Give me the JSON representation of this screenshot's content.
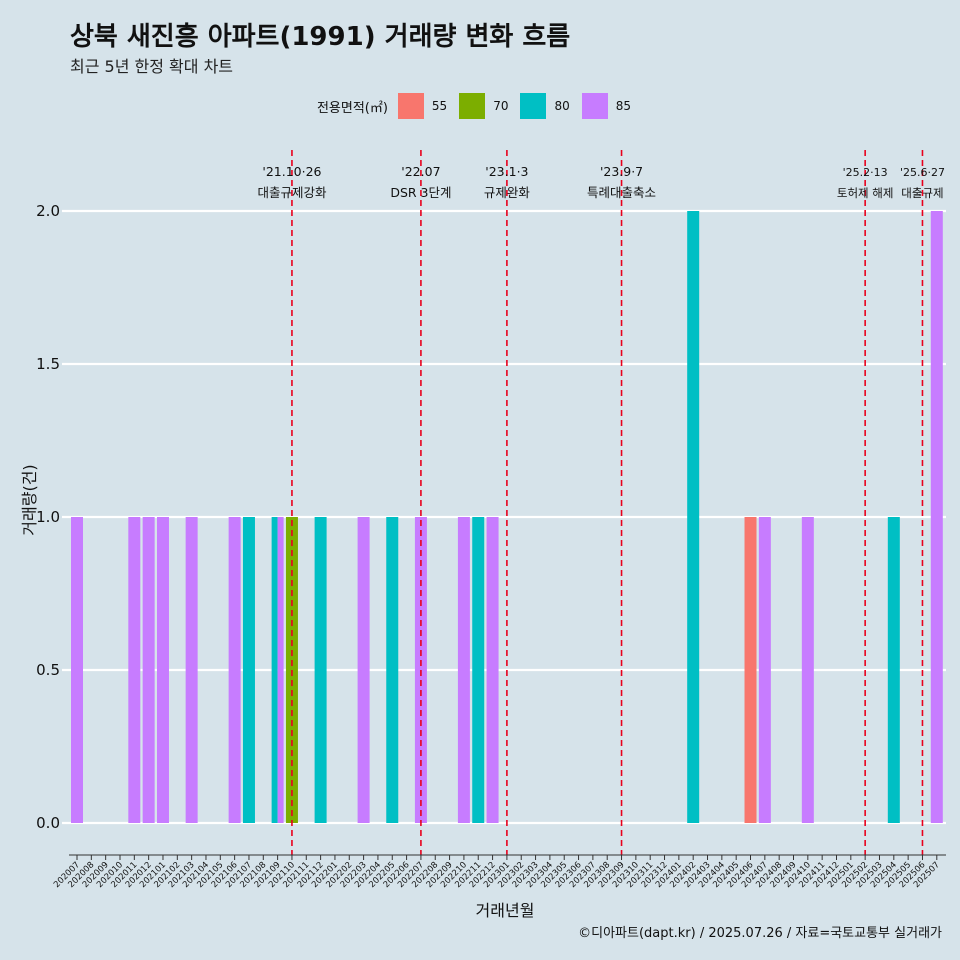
{
  "title": "상북 새진흥 아파트(1991) 거래량 변화 흐름",
  "subtitle": "최근 5년 한정 확대 차트",
  "caption": "©디아파트(dapt.kr) / 2025.07.26 / 자료=국토교통부 실거래가",
  "legend": {
    "title": "전용면적(㎡)",
    "items": [
      {
        "label": "55",
        "color": "#F8766D"
      },
      {
        "label": "70",
        "color": "#7CAE00"
      },
      {
        "label": "80",
        "color": "#00BFC4"
      },
      {
        "label": "85",
        "color": "#C77CFF"
      }
    ]
  },
  "chart_data": {
    "type": "bar",
    "xlabel": "거래년월",
    "ylabel": "거래량(건)",
    "ylim": [
      0,
      2
    ],
    "yticks": [
      "0.0",
      "0.5",
      "1.0",
      "1.5",
      "2.0"
    ],
    "grid": true,
    "legend_position": "top",
    "categories": [
      "202007",
      "202008",
      "202009",
      "202010",
      "202011",
      "202012",
      "202101",
      "202102",
      "202103",
      "202104",
      "202105",
      "202106",
      "202107",
      "202108",
      "202109",
      "202110",
      "202111",
      "202112",
      "202201",
      "202202",
      "202203",
      "202204",
      "202205",
      "202206",
      "202207",
      "202208",
      "202209",
      "202210",
      "202211",
      "202212",
      "202301",
      "202302",
      "202303",
      "202304",
      "202305",
      "202306",
      "202307",
      "202308",
      "202309",
      "202310",
      "202311",
      "202312",
      "202401",
      "202402",
      "202403",
      "202404",
      "202405",
      "202406",
      "202407",
      "202408",
      "202409",
      "202410",
      "202411",
      "202412",
      "202501",
      "202502",
      "202503",
      "202504",
      "202505",
      "202506",
      "202507"
    ],
    "bars": [
      {
        "month": "202007",
        "area": "85",
        "value": 1
      },
      {
        "month": "202011",
        "area": "85",
        "value": 1
      },
      {
        "month": "202012",
        "area": "85",
        "value": 1
      },
      {
        "month": "202101",
        "area": "85",
        "value": 1
      },
      {
        "month": "202103",
        "area": "85",
        "value": 1
      },
      {
        "month": "202106",
        "area": "85",
        "value": 1
      },
      {
        "month": "202107",
        "area": "80",
        "value": 1
      },
      {
        "month": "202109",
        "area": "80",
        "value": 1
      },
      {
        "month": "202109",
        "area": "85",
        "value": 1
      },
      {
        "month": "202110",
        "area": "70",
        "value": 1
      },
      {
        "month": "202112",
        "area": "80",
        "value": 1
      },
      {
        "month": "202203",
        "area": "85",
        "value": 1
      },
      {
        "month": "202205",
        "area": "80",
        "value": 1
      },
      {
        "month": "202207",
        "area": "85",
        "value": 1
      },
      {
        "month": "202210",
        "area": "85",
        "value": 1
      },
      {
        "month": "202211",
        "area": "80",
        "value": 1
      },
      {
        "month": "202212",
        "area": "85",
        "value": 1
      },
      {
        "month": "202402",
        "area": "80",
        "value": 2
      },
      {
        "month": "202406",
        "area": "55",
        "value": 1
      },
      {
        "month": "202407",
        "area": "85",
        "value": 1
      },
      {
        "month": "202410",
        "area": "85",
        "value": 1
      },
      {
        "month": "202504",
        "area": "80",
        "value": 1
      },
      {
        "month": "202507",
        "area": "85",
        "value": 2
      }
    ],
    "annotations": [
      {
        "month": "202110",
        "date": "'21.10·26",
        "text": "대출규제강화"
      },
      {
        "month": "202207",
        "date": "'22.07",
        "text": "DSR 3단계"
      },
      {
        "month": "202301",
        "date": "'23.1·3",
        "text": "규제완화"
      },
      {
        "month": "202309",
        "date": "'23.9·7",
        "text": "특례대출축소"
      },
      {
        "month": "202502",
        "date": "'25.2·13",
        "text": "토허제 해제"
      },
      {
        "month": "202506",
        "date": "'25.6·27",
        "text": "대출규제"
      }
    ]
  }
}
